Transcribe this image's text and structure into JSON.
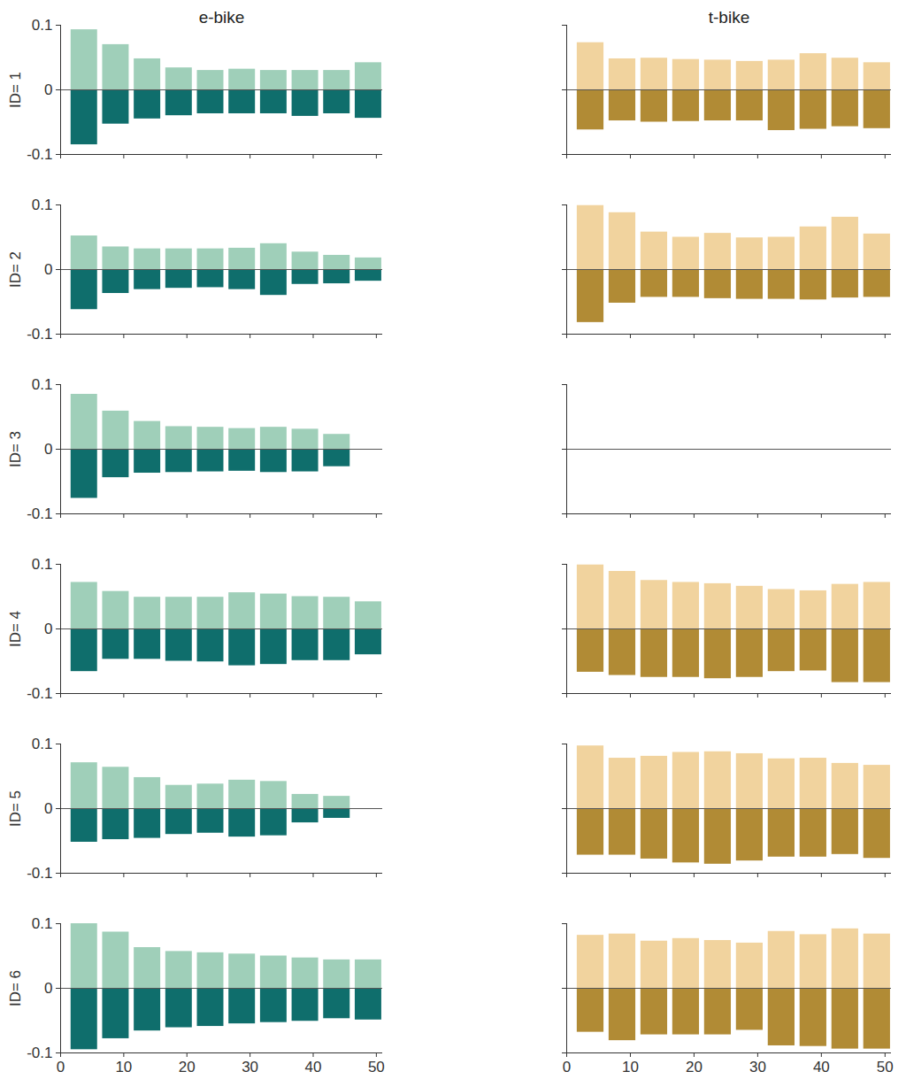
{
  "chart_data": [
    {
      "type": "bar",
      "title": "e-bike",
      "ylabel": "ID= 1",
      "stacked": true,
      "tick_labels": "y",
      "x": [
        3.75,
        8.75,
        13.75,
        18.75,
        23.75,
        28.75,
        33.75,
        38.75,
        43.75,
        48.75
      ],
      "series": [
        {
          "color": "#9fcfb9",
          "values": [
            0.093,
            0.07,
            0.048,
            0.034,
            0.03,
            0.032,
            0.03,
            0.03,
            0.03,
            0.042
          ]
        },
        {
          "color": "#0f6e6c",
          "values": [
            -0.085,
            -0.053,
            -0.045,
            -0.04,
            -0.037,
            -0.037,
            -0.037,
            -0.041,
            -0.037,
            -0.044
          ]
        }
      ],
      "xlim": [
        0,
        51
      ],
      "ylim": [
        -0.1,
        0.1
      ],
      "xticks": [
        0,
        10,
        20,
        30,
        40,
        50
      ],
      "yticks": [
        -0.1,
        0,
        0.1
      ]
    },
    {
      "type": "bar",
      "title": "t-bike",
      "stacked": true,
      "tick_labels": false,
      "x": [
        3.75,
        8.75,
        13.75,
        18.75,
        23.75,
        28.75,
        33.75,
        38.75,
        43.75,
        48.75
      ],
      "series": [
        {
          "color": "#f1d39e",
          "values": [
            0.073,
            0.048,
            0.049,
            0.047,
            0.046,
            0.044,
            0.046,
            0.056,
            0.049,
            0.042
          ]
        },
        {
          "color": "#b18b35",
          "values": [
            -0.062,
            -0.048,
            -0.05,
            -0.049,
            -0.048,
            -0.048,
            -0.063,
            -0.061,
            -0.057,
            -0.06
          ]
        }
      ],
      "xlim": [
        0,
        51
      ],
      "ylim": [
        -0.1,
        0.1
      ],
      "xticks": [
        0,
        10,
        20,
        30,
        40,
        50
      ],
      "yticks": [
        -0.1,
        0,
        0.1
      ]
    },
    {
      "type": "bar",
      "ylabel": "ID= 2",
      "stacked": true,
      "tick_labels": "y",
      "x": [
        3.75,
        8.75,
        13.75,
        18.75,
        23.75,
        28.75,
        33.75,
        38.75,
        43.75,
        48.75
      ],
      "series": [
        {
          "color": "#9fcfb9",
          "values": [
            0.052,
            0.035,
            0.032,
            0.032,
            0.032,
            0.033,
            0.04,
            0.027,
            0.022,
            0.018
          ]
        },
        {
          "color": "#0f6e6c",
          "values": [
            -0.062,
            -0.037,
            -0.031,
            -0.029,
            -0.028,
            -0.031,
            -0.04,
            -0.023,
            -0.022,
            -0.018
          ]
        }
      ],
      "xlim": [
        0,
        51
      ],
      "ylim": [
        -0.1,
        0.1
      ],
      "xticks": [
        0,
        10,
        20,
        30,
        40,
        50
      ],
      "yticks": [
        -0.1,
        0,
        0.1
      ]
    },
    {
      "type": "bar",
      "stacked": true,
      "tick_labels": false,
      "x": [
        3.75,
        8.75,
        13.75,
        18.75,
        23.75,
        28.75,
        33.75,
        38.75,
        43.75,
        48.75
      ],
      "series": [
        {
          "color": "#f1d39e",
          "values": [
            0.099,
            0.088,
            0.058,
            0.05,
            0.056,
            0.049,
            0.05,
            0.066,
            0.081,
            0.055
          ]
        },
        {
          "color": "#b18b35",
          "values": [
            -0.082,
            -0.052,
            -0.043,
            -0.043,
            -0.045,
            -0.046,
            -0.046,
            -0.047,
            -0.044,
            -0.043
          ]
        }
      ],
      "xlim": [
        0,
        51
      ],
      "ylim": [
        -0.1,
        0.1
      ],
      "xticks": [
        0,
        10,
        20,
        30,
        40,
        50
      ],
      "yticks": [
        -0.1,
        0,
        0.1
      ]
    },
    {
      "type": "bar",
      "ylabel": "ID= 3",
      "stacked": true,
      "tick_labels": "y",
      "x": [
        3.75,
        8.75,
        13.75,
        18.75,
        23.75,
        28.75,
        33.75,
        38.75,
        43.75
      ],
      "series": [
        {
          "color": "#9fcfb9",
          "values": [
            0.085,
            0.059,
            0.043,
            0.035,
            0.034,
            0.032,
            0.034,
            0.031,
            0.023
          ]
        },
        {
          "color": "#0f6e6c",
          "values": [
            -0.076,
            -0.044,
            -0.037,
            -0.036,
            -0.035,
            -0.034,
            -0.036,
            -0.035,
            -0.027
          ]
        }
      ],
      "xlim": [
        0,
        51
      ],
      "ylim": [
        -0.1,
        0.1
      ],
      "xticks": [
        0,
        10,
        20,
        30,
        40,
        50
      ],
      "yticks": [
        -0.1,
        0,
        0.1
      ]
    },
    {
      "type": "bar",
      "stacked": true,
      "tick_labels": false,
      "x": [],
      "series": [
        {
          "color": "#f1d39e",
          "values": []
        },
        {
          "color": "#b18b35",
          "values": []
        }
      ],
      "xlim": [
        0,
        51
      ],
      "ylim": [
        -0.1,
        0.1
      ],
      "xticks": [
        0,
        10,
        20,
        30,
        40,
        50
      ],
      "yticks": [
        -0.1,
        0,
        0.1
      ]
    },
    {
      "type": "bar",
      "ylabel": "ID= 4",
      "stacked": true,
      "tick_labels": "y",
      "x": [
        3.75,
        8.75,
        13.75,
        18.75,
        23.75,
        28.75,
        33.75,
        38.75,
        43.75,
        48.75
      ],
      "series": [
        {
          "color": "#9fcfb9",
          "values": [
            0.072,
            0.058,
            0.049,
            0.049,
            0.049,
            0.056,
            0.054,
            0.05,
            0.049,
            0.042
          ]
        },
        {
          "color": "#0f6e6c",
          "values": [
            -0.066,
            -0.047,
            -0.047,
            -0.05,
            -0.051,
            -0.057,
            -0.055,
            -0.049,
            -0.049,
            -0.04
          ]
        }
      ],
      "xlim": [
        0,
        51
      ],
      "ylim": [
        -0.1,
        0.1
      ],
      "xticks": [
        0,
        10,
        20,
        30,
        40,
        50
      ],
      "yticks": [
        -0.1,
        0,
        0.1
      ]
    },
    {
      "type": "bar",
      "stacked": true,
      "tick_labels": false,
      "x": [
        3.75,
        8.75,
        13.75,
        18.75,
        23.75,
        28.75,
        33.75,
        38.75,
        43.75,
        48.75
      ],
      "series": [
        {
          "color": "#f1d39e",
          "values": [
            0.099,
            0.089,
            0.075,
            0.072,
            0.07,
            0.066,
            0.061,
            0.059,
            0.069,
            0.072
          ]
        },
        {
          "color": "#b18b35",
          "values": [
            -0.067,
            -0.072,
            -0.075,
            -0.075,
            -0.077,
            -0.075,
            -0.066,
            -0.065,
            -0.083,
            -0.083
          ]
        }
      ],
      "xlim": [
        0,
        51
      ],
      "ylim": [
        -0.1,
        0.1
      ],
      "xticks": [
        0,
        10,
        20,
        30,
        40,
        50
      ],
      "yticks": [
        -0.1,
        0,
        0.1
      ]
    },
    {
      "type": "bar",
      "ylabel": "ID= 5",
      "stacked": true,
      "tick_labels": "y",
      "x": [
        3.75,
        8.75,
        13.75,
        18.75,
        23.75,
        28.75,
        33.75,
        38.75,
        43.75
      ],
      "series": [
        {
          "color": "#9fcfb9",
          "values": [
            0.071,
            0.064,
            0.048,
            0.036,
            0.038,
            0.044,
            0.042,
            0.022,
            0.019
          ]
        },
        {
          "color": "#0f6e6c",
          "values": [
            -0.052,
            -0.048,
            -0.046,
            -0.04,
            -0.038,
            -0.044,
            -0.042,
            -0.022,
            -0.015
          ]
        }
      ],
      "xlim": [
        0,
        51
      ],
      "ylim": [
        -0.1,
        0.1
      ],
      "xticks": [
        0,
        10,
        20,
        30,
        40,
        50
      ],
      "yticks": [
        -0.1,
        0,
        0.1
      ]
    },
    {
      "type": "bar",
      "stacked": true,
      "tick_labels": false,
      "x": [
        3.75,
        8.75,
        13.75,
        18.75,
        23.75,
        28.75,
        33.75,
        38.75,
        43.75,
        48.75
      ],
      "series": [
        {
          "color": "#f1d39e",
          "values": [
            0.097,
            0.078,
            0.081,
            0.087,
            0.088,
            0.085,
            0.077,
            0.078,
            0.07,
            0.067
          ]
        },
        {
          "color": "#b18b35",
          "values": [
            -0.072,
            -0.072,
            -0.078,
            -0.084,
            -0.086,
            -0.081,
            -0.075,
            -0.075,
            -0.071,
            -0.077
          ]
        }
      ],
      "xlim": [
        0,
        51
      ],
      "ylim": [
        -0.1,
        0.1
      ],
      "xticks": [
        0,
        10,
        20,
        30,
        40,
        50
      ],
      "yticks": [
        -0.1,
        0,
        0.1
      ]
    },
    {
      "type": "bar",
      "ylabel": "ID= 6",
      "stacked": true,
      "tick_labels": true,
      "x": [
        3.75,
        8.75,
        13.75,
        18.75,
        23.75,
        28.75,
        33.75,
        38.75,
        43.75,
        48.75
      ],
      "series": [
        {
          "color": "#9fcfb9",
          "values": [
            0.1,
            0.087,
            0.063,
            0.057,
            0.055,
            0.053,
            0.05,
            0.047,
            0.044,
            0.044
          ]
        },
        {
          "color": "#0f6e6c",
          "values": [
            -0.095,
            -0.078,
            -0.066,
            -0.061,
            -0.059,
            -0.055,
            -0.053,
            -0.051,
            -0.047,
            -0.049
          ]
        }
      ],
      "xlim": [
        0,
        51
      ],
      "ylim": [
        -0.1,
        0.1
      ],
      "xticks": [
        0,
        10,
        20,
        30,
        40,
        50
      ],
      "yticks": [
        -0.1,
        0,
        0.1
      ]
    },
    {
      "type": "bar",
      "stacked": true,
      "tick_labels": "x",
      "x": [
        3.75,
        8.75,
        13.75,
        18.75,
        23.75,
        28.75,
        33.75,
        38.75,
        43.75,
        48.75
      ],
      "series": [
        {
          "color": "#f1d39e",
          "values": [
            0.082,
            0.084,
            0.073,
            0.077,
            0.074,
            0.07,
            0.088,
            0.083,
            0.092,
            0.084
          ]
        },
        {
          "color": "#b18b35",
          "values": [
            -0.068,
            -0.081,
            -0.072,
            -0.072,
            -0.072,
            -0.065,
            -0.089,
            -0.09,
            -0.094,
            -0.094
          ]
        }
      ],
      "xlim": [
        0,
        51
      ],
      "ylim": [
        -0.1,
        0.1
      ],
      "xticks": [
        0,
        10,
        20,
        30,
        40,
        50
      ],
      "yticks": [
        -0.1,
        0,
        0.1
      ]
    }
  ]
}
